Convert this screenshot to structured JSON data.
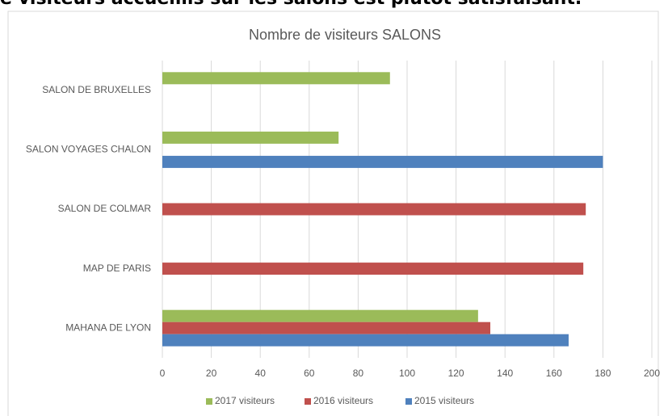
{
  "page_text": "e visiteurs accueillis sur les salons est plutôt satisfaisant.",
  "chart_data": {
    "type": "barh",
    "title": "Nombre de visiteurs SALONS",
    "categories": [
      "MAHANA DE LYON",
      "MAP DE PARIS",
      "SALON DE COLMAR",
      "SALON VOYAGES CHALON",
      "SALON DE BRUXELLES"
    ],
    "series": [
      {
        "name": "2017 visiteurs",
        "color": "#9bbb59",
        "values": [
          129,
          null,
          null,
          72,
          93
        ]
      },
      {
        "name": "2016 visiteurs",
        "color": "#c0504d",
        "values": [
          134,
          172,
          173,
          null,
          null
        ]
      },
      {
        "name": "2015 visiteurs",
        "color": "#4f81bd",
        "values": [
          166,
          null,
          null,
          180,
          null
        ]
      }
    ],
    "xlim": [
      0,
      200
    ],
    "xticks": [
      0,
      20,
      40,
      60,
      80,
      100,
      120,
      140,
      160,
      180,
      200
    ],
    "grid": true,
    "legend": "bottom"
  }
}
